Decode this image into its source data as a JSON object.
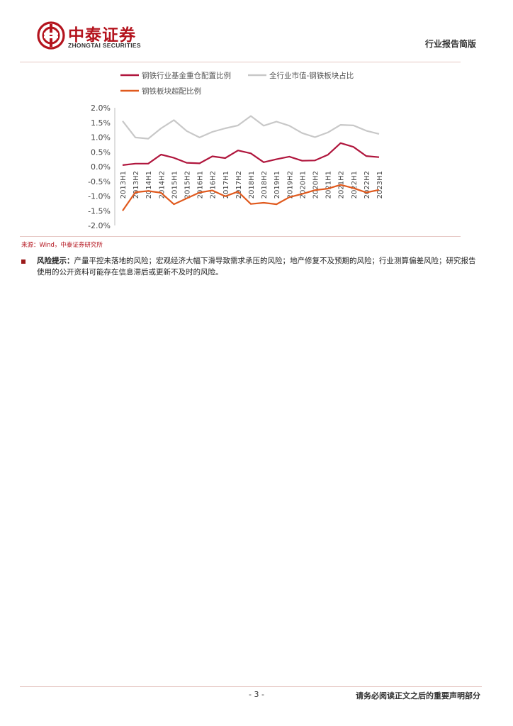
{
  "header": {
    "logo_cn": "中泰证券",
    "logo_en": "ZHONGTAI SECURITIES",
    "report_type": "行业报告简版"
  },
  "chart_data": {
    "type": "line",
    "categories": [
      "2013H1",
      "2013H2",
      "2014H1",
      "2014H2",
      "2015H1",
      "2015H2",
      "2016H1",
      "2016H2",
      "2017H1",
      "2017H2",
      "2018H1",
      "2018H2",
      "2019H1",
      "2019H2",
      "2020H1",
      "2020H2",
      "2021H1",
      "2021H2",
      "2022H1",
      "2022H2",
      "2023H1"
    ],
    "series": [
      {
        "name": "钢铁行业基金重仓配置比例",
        "color": "#b0163d",
        "values": [
          0.05,
          0.1,
          0.1,
          0.41,
          0.3,
          0.13,
          0.11,
          0.35,
          0.29,
          0.55,
          0.45,
          0.15,
          0.25,
          0.34,
          0.2,
          0.21,
          0.4,
          0.8,
          0.67,
          0.36,
          0.32
        ]
      },
      {
        "name": "全行业市值-钢铁板块占比",
        "color": "#c8c8c8",
        "values": [
          1.55,
          0.99,
          0.95,
          1.3,
          1.58,
          1.21,
          0.99,
          1.18,
          1.3,
          1.4,
          1.72,
          1.39,
          1.53,
          1.39,
          1.14,
          1.0,
          1.16,
          1.42,
          1.4,
          1.22,
          1.11
        ]
      },
      {
        "name": "钢铁板块超配比例",
        "color": "#e05a1e",
        "values": [
          -1.5,
          -0.87,
          -0.83,
          -0.89,
          -1.28,
          -1.08,
          -0.88,
          -0.81,
          -1.01,
          -0.85,
          -1.27,
          -1.23,
          -1.28,
          -1.04,
          -0.93,
          -0.8,
          -0.75,
          -0.62,
          -0.73,
          -0.88,
          -0.79
        ]
      }
    ],
    "y_ticks": [
      "2.0%",
      "1.5%",
      "1.0%",
      "0.5%",
      "0.0%",
      "-0.5%",
      "-1.0%",
      "-1.5%",
      "-2.0%"
    ],
    "ylim": [
      -2.0,
      2.0
    ],
    "legend_position": "top"
  },
  "source_text": "来源：Wind，中泰证券研究所",
  "risk": {
    "label": "风险提示：",
    "text": "产量平控未落地的风险；宏观经济大幅下滑导致需求承压的风险；地产修复不及预期的风险；行业测算偏差风险；研究报告使用的公开资料可能存在信息滞后或更新不及时的风险。"
  },
  "footer": {
    "page": "- 3 -",
    "disclaimer": "请务必阅读正文之后的重要声明部分"
  }
}
